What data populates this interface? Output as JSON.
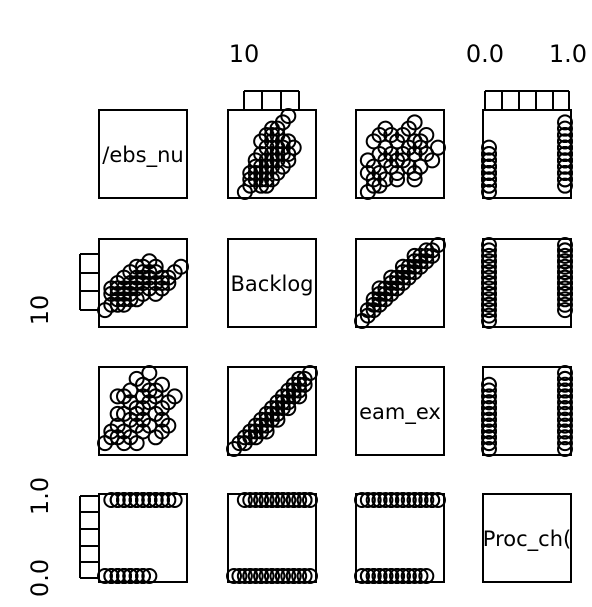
{
  "chart_data": {
    "type": "scatter",
    "matrix": true,
    "variables": [
      "Webs_nu",
      "Backlog",
      "Team_ex",
      "Proc_chg"
    ],
    "variable_labels_visible": [
      "/ebs_nu",
      "Backlog",
      "eam_ex",
      "Proc_ch("
    ],
    "top_axis": [
      {
        "column": 1,
        "ticks": [
          "10"
        ]
      },
      {
        "column": 3,
        "ticks": [
          "0.0",
          "1.0"
        ]
      }
    ],
    "left_axis": [
      {
        "row": 1,
        "ticks": [
          "10"
        ]
      },
      {
        "row": 3,
        "ticks": [
          "0.0",
          "1.0"
        ]
      }
    ],
    "pairs": {
      "0_1": [
        [
          7,
          9
        ],
        [
          8,
          10
        ],
        [
          9,
          10
        ],
        [
          10,
          11
        ],
        [
          11,
          12
        ],
        [
          12,
          13
        ],
        [
          9,
          12
        ],
        [
          10,
          13
        ],
        [
          11,
          14
        ],
        [
          12,
          15
        ],
        [
          13,
          16
        ],
        [
          14,
          15
        ],
        [
          15,
          14
        ],
        [
          16,
          15
        ],
        [
          13,
          17
        ],
        [
          14,
          18
        ],
        [
          15,
          16
        ],
        [
          12,
          17
        ],
        [
          11,
          16
        ],
        [
          10,
          15
        ],
        [
          9,
          14
        ],
        [
          8,
          13
        ],
        [
          13,
          14
        ],
        [
          14,
          13
        ],
        [
          15,
          12
        ],
        [
          16,
          13
        ],
        [
          12,
          11
        ],
        [
          13,
          12
        ],
        [
          11,
          11
        ],
        [
          10,
          10
        ],
        [
          9,
          11
        ],
        [
          8,
          12
        ],
        [
          16,
          14
        ],
        [
          17,
          15
        ],
        [
          15,
          17
        ],
        [
          14,
          16
        ],
        [
          12,
          14
        ],
        [
          10,
          12
        ],
        [
          18,
          16
        ],
        [
          19,
          17
        ],
        [
          13,
          15
        ],
        [
          11,
          13
        ],
        [
          9,
          13
        ],
        [
          17,
          14
        ]
      ],
      "0_2": [
        [
          7,
          0.1
        ],
        [
          8,
          0.3
        ],
        [
          9,
          0.4
        ],
        [
          10,
          0.6
        ],
        [
          11,
          0.5
        ],
        [
          12,
          0.7
        ],
        [
          13,
          0.9
        ],
        [
          14,
          0.8
        ],
        [
          15,
          1.0
        ],
        [
          16,
          1.1
        ],
        [
          9,
          0.2
        ],
        [
          10,
          0.3
        ],
        [
          11,
          0.2
        ],
        [
          12,
          0.4
        ],
        [
          13,
          0.5
        ],
        [
          14,
          0.4
        ],
        [
          15,
          0.6
        ],
        [
          16,
          0.5
        ],
        [
          10,
          0.9
        ],
        [
          11,
          1.0
        ],
        [
          12,
          1.2
        ],
        [
          13,
          1.1
        ],
        [
          14,
          1.3
        ],
        [
          8,
          0.2
        ],
        [
          9,
          0.6
        ],
        [
          15,
          0.2
        ],
        [
          16,
          0.3
        ],
        [
          17,
          0.8
        ],
        [
          12,
          0.1
        ],
        [
          13,
          0.3
        ],
        [
          11,
          0.8
        ],
        [
          14,
          1.0
        ],
        [
          10,
          0.1
        ],
        [
          18,
          0.9
        ],
        [
          9,
          0.9
        ],
        [
          17,
          0.4
        ],
        [
          12,
          0.6
        ],
        [
          15,
          0.9
        ],
        [
          13,
          0.7
        ],
        [
          16,
          0.7
        ]
      ],
      "0_3": [
        [
          7,
          0
        ],
        [
          8,
          0
        ],
        [
          9,
          0
        ],
        [
          9,
          0
        ],
        [
          10,
          0
        ],
        [
          10,
          0
        ],
        [
          10,
          0
        ],
        [
          11,
          0
        ],
        [
          11,
          0
        ],
        [
          12,
          0
        ],
        [
          12,
          0
        ],
        [
          13,
          0
        ],
        [
          14,
          0
        ],
        [
          9,
          0
        ],
        [
          8,
          0
        ],
        [
          11,
          0
        ],
        [
          13,
          0
        ],
        [
          10,
          0
        ],
        [
          8,
          1
        ],
        [
          9,
          1
        ],
        [
          10,
          1
        ],
        [
          11,
          1
        ],
        [
          12,
          1
        ],
        [
          13,
          1
        ],
        [
          14,
          1
        ],
        [
          15,
          1
        ],
        [
          16,
          1
        ],
        [
          17,
          1
        ],
        [
          18,
          1
        ],
        [
          12,
          1
        ],
        [
          13,
          1
        ],
        [
          14,
          1
        ],
        [
          11,
          1
        ],
        [
          15,
          1
        ],
        [
          16,
          1
        ],
        [
          10,
          1
        ],
        [
          9,
          1
        ],
        [
          14,
          1
        ],
        [
          13,
          1
        ],
        [
          12,
          1
        ]
      ],
      "1_2": [
        [
          7,
          0.0
        ],
        [
          8,
          0.1
        ],
        [
          9,
          0.2
        ],
        [
          10,
          0.3
        ],
        [
          11,
          0.3
        ],
        [
          12,
          0.4
        ],
        [
          13,
          0.5
        ],
        [
          14,
          0.6
        ],
        [
          15,
          0.7
        ],
        [
          16,
          0.8
        ],
        [
          17,
          0.9
        ],
        [
          18,
          1.0
        ],
        [
          19,
          1.1
        ],
        [
          20,
          1.2
        ],
        [
          21,
          1.3
        ],
        [
          10,
          0.2
        ],
        [
          11,
          0.2
        ],
        [
          12,
          0.3
        ],
        [
          13,
          0.4
        ],
        [
          14,
          0.5
        ],
        [
          15,
          0.6
        ],
        [
          16,
          0.7
        ],
        [
          17,
          0.8
        ],
        [
          18,
          0.9
        ],
        [
          19,
          1.0
        ],
        [
          20,
          1.1
        ],
        [
          12,
          0.5
        ],
        [
          13,
          0.6
        ],
        [
          14,
          0.7
        ],
        [
          15,
          0.8
        ],
        [
          16,
          0.9
        ],
        [
          17,
          1.0
        ],
        [
          18,
          1.1
        ],
        [
          19,
          1.2
        ],
        [
          9,
          0.1
        ],
        [
          11,
          0.4
        ],
        [
          13,
          0.3
        ],
        [
          15,
          0.5
        ],
        [
          17,
          0.7
        ],
        [
          19,
          0.9
        ]
      ],
      "1_3": [
        [
          7,
          0
        ],
        [
          8,
          0
        ],
        [
          9,
          0
        ],
        [
          10,
          0
        ],
        [
          11,
          0
        ],
        [
          12,
          0
        ],
        [
          13,
          0
        ],
        [
          14,
          0
        ],
        [
          15,
          0
        ],
        [
          16,
          0
        ],
        [
          17,
          0
        ],
        [
          18,
          0
        ],
        [
          19,
          0
        ],
        [
          20,
          0
        ],
        [
          21,
          0
        ],
        [
          12,
          0
        ],
        [
          14,
          0
        ],
        [
          16,
          0
        ],
        [
          10,
          0
        ],
        [
          18,
          0
        ],
        [
          9,
          1
        ],
        [
          10,
          1
        ],
        [
          11,
          1
        ],
        [
          12,
          1
        ],
        [
          13,
          1
        ],
        [
          14,
          1
        ],
        [
          15,
          1
        ],
        [
          16,
          1
        ],
        [
          17,
          1
        ],
        [
          18,
          1
        ],
        [
          19,
          1
        ],
        [
          20,
          1
        ],
        [
          21,
          1
        ],
        [
          14,
          1
        ],
        [
          16,
          1
        ],
        [
          12,
          1
        ],
        [
          18,
          1
        ],
        [
          20,
          1
        ],
        [
          15,
          1
        ],
        [
          13,
          1
        ]
      ],
      "2_3": [
        [
          0.0,
          0
        ],
        [
          0.1,
          0
        ],
        [
          0.2,
          0
        ],
        [
          0.3,
          0
        ],
        [
          0.4,
          0
        ],
        [
          0.5,
          0
        ],
        [
          0.6,
          0
        ],
        [
          0.7,
          0
        ],
        [
          0.8,
          0
        ],
        [
          0.9,
          0
        ],
        [
          1.0,
          0
        ],
        [
          1.1,
          0
        ],
        [
          0.2,
          0
        ],
        [
          0.4,
          0
        ],
        [
          0.6,
          0
        ],
        [
          0.3,
          0
        ],
        [
          0.5,
          0
        ],
        [
          0.7,
          0
        ],
        [
          0.1,
          0
        ],
        [
          0.8,
          0
        ],
        [
          0.0,
          1
        ],
        [
          0.1,
          1
        ],
        [
          0.2,
          1
        ],
        [
          0.3,
          1
        ],
        [
          0.4,
          1
        ],
        [
          0.5,
          1
        ],
        [
          0.6,
          1
        ],
        [
          0.7,
          1
        ],
        [
          0.8,
          1
        ],
        [
          0.9,
          1
        ],
        [
          1.0,
          1
        ],
        [
          1.1,
          1
        ],
        [
          1.2,
          1
        ],
        [
          1.3,
          1
        ],
        [
          0.5,
          1
        ],
        [
          0.7,
          1
        ],
        [
          0.9,
          1
        ],
        [
          0.3,
          1
        ],
        [
          1.0,
          1
        ],
        [
          1.2,
          1
        ]
      ]
    },
    "ranges": {
      "0": [
        7,
        19
      ],
      "1": [
        7,
        21
      ],
      "2": [
        0.0,
        1.3
      ],
      "3": [
        0,
        1
      ]
    }
  }
}
